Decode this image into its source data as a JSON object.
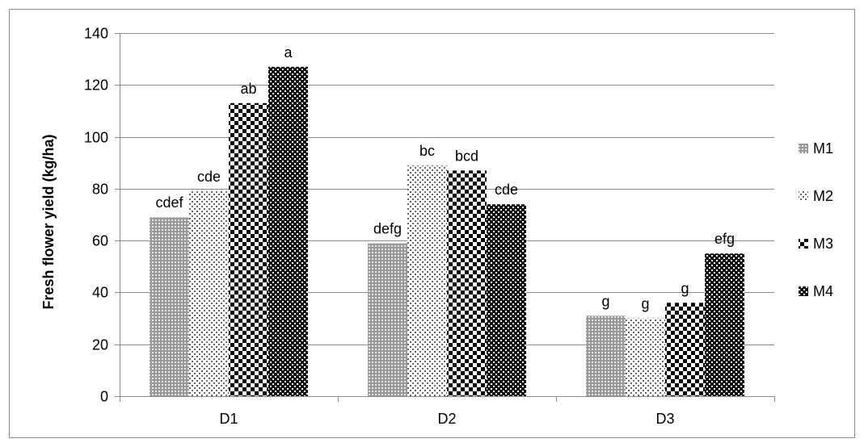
{
  "chart_data": {
    "type": "bar",
    "categories": [
      "D1",
      "D2",
      "D3"
    ],
    "series": [
      {
        "name": "M1",
        "values": [
          69,
          59,
          31
        ],
        "labels": [
          "cdef",
          "defg",
          "g"
        ],
        "pattern": "grid-dense"
      },
      {
        "name": "M2",
        "values": [
          79,
          89,
          30
        ],
        "labels": [
          "cde",
          "bc",
          "g"
        ],
        "pattern": "dots-sparse"
      },
      {
        "name": "M3",
        "values": [
          113,
          87,
          36
        ],
        "labels": [
          "ab",
          "bcd",
          "g"
        ],
        "pattern": "checker"
      },
      {
        "name": "M4",
        "values": [
          127,
          74,
          55
        ],
        "labels": [
          "a",
          "cde",
          "efg"
        ],
        "pattern": "dots-dark"
      }
    ],
    "ylabel": "Fresh flower yield (kg/ha)",
    "xlabel": "",
    "ylim": [
      0,
      140
    ],
    "yticks": [
      "0",
      "20",
      "40",
      "60",
      "80",
      "100",
      "120",
      "140"
    ],
    "grid": true,
    "legend_position": "right"
  }
}
